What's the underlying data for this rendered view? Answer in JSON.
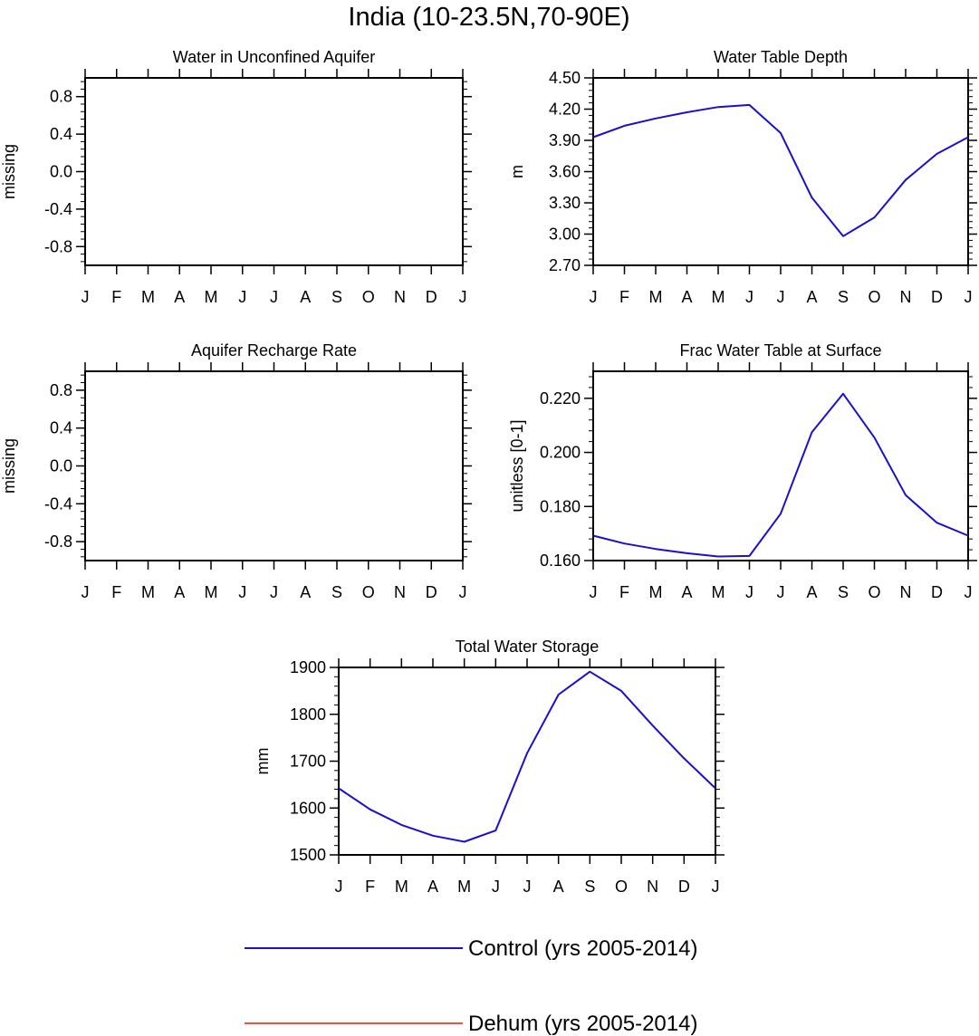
{
  "figure": {
    "title": "India (10-23.5N,70-90E)",
    "colors": {
      "control": "#1a0fd0",
      "dehum": "#f0503c",
      "axis": "#000000"
    }
  },
  "legend": {
    "entries": [
      {
        "label": "Control (yrs 2005-2014)",
        "color": "#1a0fd0"
      },
      {
        "label": "Dehum (yrs 2005-2014)",
        "color": "#f0503c"
      }
    ]
  },
  "chart_data": [
    {
      "id": "p1",
      "type": "line",
      "title": "Water in Unconfined Aquifer",
      "xlabel": "",
      "ylabel": "missing",
      "categories": [
        "J",
        "F",
        "M",
        "A",
        "M",
        "J",
        "J",
        "A",
        "S",
        "O",
        "N",
        "D",
        "J"
      ],
      "ylim": [
        -1.0,
        1.0
      ],
      "yticks": [
        -0.8,
        -0.4,
        0.0,
        0.4,
        0.8
      ],
      "ytick_labels": [
        "-0.8",
        "-0.4",
        "0.0",
        "0.4",
        "0.8"
      ],
      "series": []
    },
    {
      "id": "p2",
      "type": "line",
      "title": "Water Table Depth",
      "xlabel": "",
      "ylabel": "m",
      "categories": [
        "J",
        "F",
        "M",
        "A",
        "M",
        "J",
        "J",
        "A",
        "S",
        "O",
        "N",
        "D",
        "J"
      ],
      "ylim": [
        2.7,
        4.5
      ],
      "yticks": [
        2.7,
        3.0,
        3.3,
        3.6,
        3.9,
        4.2,
        4.5
      ],
      "ytick_labels": [
        "2.70",
        "3.00",
        "3.30",
        "3.60",
        "3.90",
        "4.20",
        "4.50"
      ],
      "series": [
        {
          "name": "Control (yrs 2005-2014)",
          "values": [
            3.93,
            4.04,
            4.11,
            4.17,
            4.22,
            4.24,
            3.97,
            3.35,
            2.98,
            3.16,
            3.52,
            3.77,
            3.93
          ]
        }
      ]
    },
    {
      "id": "p3",
      "type": "line",
      "title": "Aquifer Recharge Rate",
      "xlabel": "",
      "ylabel": "missing",
      "categories": [
        "J",
        "F",
        "M",
        "A",
        "M",
        "J",
        "J",
        "A",
        "S",
        "O",
        "N",
        "D",
        "J"
      ],
      "ylim": [
        -1.0,
        1.0
      ],
      "yticks": [
        -0.8,
        -0.4,
        0.0,
        0.4,
        0.8
      ],
      "ytick_labels": [
        "-0.8",
        "-0.4",
        "0.0",
        "0.4",
        "0.8"
      ],
      "series": []
    },
    {
      "id": "p4",
      "type": "line",
      "title": "Frac Water Table at Surface",
      "xlabel": "",
      "ylabel": "unitless [0-1]",
      "categories": [
        "J",
        "F",
        "M",
        "A",
        "M",
        "J",
        "J",
        "A",
        "S",
        "O",
        "N",
        "D",
        "J"
      ],
      "ylim": [
        0.16,
        0.23
      ],
      "yticks": [
        0.16,
        0.18,
        0.2,
        0.22
      ],
      "ytick_labels": [
        "0.160",
        "0.180",
        "0.200",
        "0.220"
      ],
      "series": [
        {
          "name": "Control (yrs 2005-2014)",
          "values": [
            0.1692,
            0.1663,
            0.1643,
            0.1627,
            0.1615,
            0.1617,
            0.1773,
            0.2075,
            0.2217,
            0.2055,
            0.1842,
            0.174,
            0.1692
          ]
        }
      ]
    },
    {
      "id": "p5",
      "type": "line",
      "title": "Total Water Storage",
      "xlabel": "",
      "ylabel": "mm",
      "categories": [
        "J",
        "F",
        "M",
        "A",
        "M",
        "J",
        "J",
        "A",
        "S",
        "O",
        "N",
        "D",
        "J"
      ],
      "ylim": [
        1500,
        1900
      ],
      "yticks": [
        1500,
        1600,
        1700,
        1800,
        1900
      ],
      "ytick_labels": [
        "1500",
        "1600",
        "1700",
        "1800",
        "1900"
      ],
      "series": [
        {
          "name": "Control (yrs 2005-2014)",
          "values": [
            1642,
            1597,
            1564,
            1541,
            1528,
            1552,
            1717,
            1842,
            1891,
            1850,
            1776,
            1706,
            1642
          ]
        }
      ]
    }
  ]
}
